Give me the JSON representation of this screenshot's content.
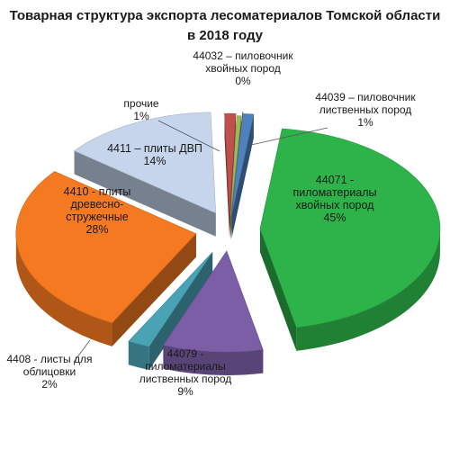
{
  "chart_data": {
    "type": "pie",
    "title": "Товарная структура экспорта лесоматериалов Томской области",
    "subtitle": "в 2018 году",
    "slices": [
      {
        "label": "44071 - пиломатериалы хвойных пород",
        "label_lines": [
          "44071 -",
          "пиломатериалы",
          "хвойных пород"
        ],
        "pct_text": "45%",
        "value": 45,
        "color": "#2db34a"
      },
      {
        "label": "44079 - пиломатериалы лиственных пород",
        "label_lines": [
          "44079 -",
          "пиломатериалы",
          "лиственных пород"
        ],
        "pct_text": "9%",
        "value": 9,
        "color": "#7b5ea6"
      },
      {
        "label": "4408 - листы для облицовки",
        "label_lines": [
          "4408 - листы для",
          "облицовки"
        ],
        "pct_text": "2%",
        "value": 2,
        "color": "#4aa3b5"
      },
      {
        "label": "4410 - плиты древесно-стружечные",
        "label_lines": [
          "4410 - плиты",
          "древесно-",
          "стружечные"
        ],
        "pct_text": "28%",
        "value": 28,
        "color": "#f47920"
      },
      {
        "label": "4411 – плиты ДВП",
        "label_lines": [
          "4411 – плиты ДВП"
        ],
        "pct_text": "14%",
        "value": 14,
        "color": "#c6d5ec"
      },
      {
        "label": "прочие",
        "label_lines": [
          "прочие"
        ],
        "pct_text": "1%",
        "value": 1,
        "color": "#c0504d"
      },
      {
        "label": "44032 – пиловочник хвойных пород",
        "label_lines": [
          "44032 – пиловочник",
          "хвойных пород"
        ],
        "pct_text": "0%",
        "value": 0.4,
        "color": "#9bbb59"
      },
      {
        "label": "44039 – пиловочник лиственных пород",
        "label_lines": [
          "44039 – пиловочник",
          "лиственных пород"
        ],
        "pct_text": "1%",
        "value": 1,
        "color": "#4f81bd"
      }
    ]
  }
}
